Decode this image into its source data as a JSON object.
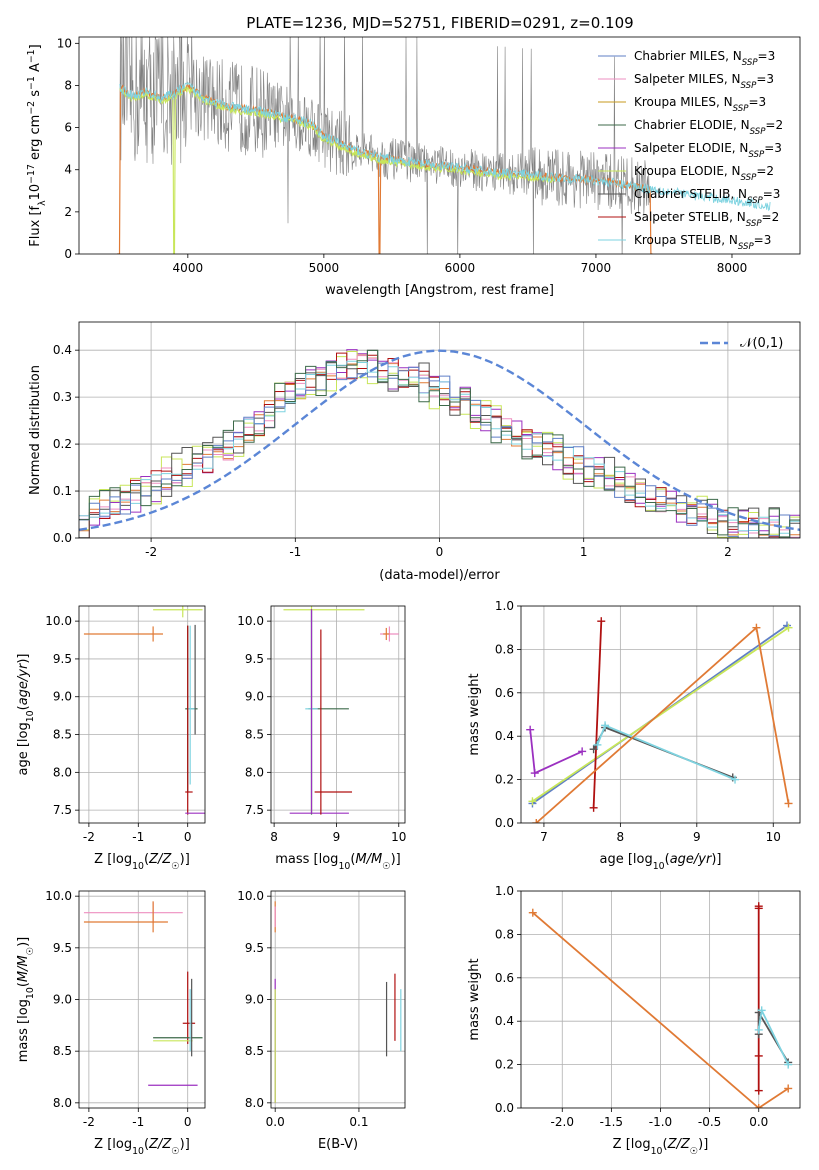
{
  "figure_title": "PLATE=1236, MJD=52751, FIBERID=0291, z=0.109",
  "colors": {
    "Chabrier MILES": "#5f7fc6",
    "Salpeter MILES": "#ee8fc0",
    "Kroupa MILES": "#c79a1e",
    "Chabrier ELODIE": "#3d6a4a",
    "Salpeter ELODIE": "#9b30c0",
    "Kroupa ELODIE": "#c8e65a",
    "Chabrier STELIB": "#555555",
    "Salpeter STELIB": "#b01010",
    "Kroupa STELIB": "#7ed3e0",
    "data": "#808080",
    "gauss": "#5b86d6",
    "orange_model": "#e07a35"
  },
  "chart_data": [
    {
      "id": "spectrum",
      "type": "line",
      "title": "PLATE=1236, MJD=52751, FIBERID=0291, z=0.109",
      "xlabel": "wavelength [Angstrom, rest frame]",
      "ylabel": "Flux [f_λ 10^-17 erg cm^-2 s^-1 A^-1]",
      "xlim": [
        3200,
        8500
      ],
      "ylim": [
        0,
        10.3
      ],
      "xticks": [
        4000,
        5000,
        6000,
        7000,
        8000
      ],
      "yticks": [
        0,
        2,
        4,
        6,
        8,
        10
      ],
      "grid": false,
      "legend_position": "top-right",
      "legend": [
        {
          "name": "Chabrier MILES",
          "nssp": "3"
        },
        {
          "name": "Salpeter MILES",
          "nssp": "3"
        },
        {
          "name": "Kroupa MILES",
          "nssp": "3"
        },
        {
          "name": "Chabrier ELODIE",
          "nssp": "2"
        },
        {
          "name": "Salpeter ELODIE",
          "nssp": "3"
        },
        {
          "name": "Kroupa ELODIE",
          "nssp": "2"
        },
        {
          "name": "Chabrier STELIB",
          "nssp": "3"
        },
        {
          "name": "Salpeter STELIB",
          "nssp": "2"
        },
        {
          "name": "Kroupa STELIB",
          "nssp": "3"
        }
      ],
      "model_continuum": {
        "x": [
          3500,
          3600,
          3700,
          3800,
          3900,
          4000,
          4100,
          4200,
          4300,
          4400,
          4500,
          4600,
          4700,
          4800,
          4900,
          5000,
          5200,
          5400,
          5600,
          5800,
          6000,
          6200,
          6400,
          6600,
          6800,
          7000,
          7200,
          7400,
          7600,
          7800,
          8000,
          8200,
          8280
        ],
        "y": [
          7.9,
          7.5,
          7.7,
          7.4,
          7.6,
          8.0,
          7.5,
          7.2,
          7.0,
          6.9,
          6.8,
          6.7,
          6.5,
          6.4,
          6.2,
          5.6,
          5.0,
          4.6,
          4.4,
          4.2,
          4.1,
          3.9,
          3.8,
          3.7,
          3.6,
          3.5,
          3.3,
          3.1,
          2.9,
          2.7,
          2.55,
          2.35,
          2.25
        ]
      }
    },
    {
      "id": "residuals",
      "type": "line",
      "xlabel": "(data-model)/error",
      "ylabel": "Normed distribution",
      "xlim": [
        -2.5,
        2.5
      ],
      "ylim": [
        0,
        0.46
      ],
      "xticks": [
        -2,
        -1,
        0,
        1,
        2
      ],
      "yticks": [
        0.0,
        0.1,
        0.2,
        0.3,
        0.4
      ],
      "grid": true,
      "legend_position": "top-right",
      "gauss_label": "𝒩(0,1)",
      "bin_width": 0.1,
      "hist_base": [
        0.03,
        0.05,
        0.06,
        0.07,
        0.08,
        0.09,
        0.1,
        0.11,
        0.13,
        0.14,
        0.15,
        0.16,
        0.17,
        0.18,
        0.19,
        0.21,
        0.23,
        0.25,
        0.27,
        0.29,
        0.31,
        0.32,
        0.33,
        0.34,
        0.35,
        0.36,
        0.37,
        0.37,
        0.36,
        0.36,
        0.35,
        0.35,
        0.34,
        0.33,
        0.32,
        0.31,
        0.3,
        0.29,
        0.27,
        0.26,
        0.24,
        0.23,
        0.22,
        0.21,
        0.2,
        0.19,
        0.18,
        0.17,
        0.16,
        0.15,
        0.14,
        0.13,
        0.12,
        0.11,
        0.1,
        0.09,
        0.08,
        0.07,
        0.06,
        0.05,
        0.05,
        0.04,
        0.04,
        0.03,
        0.03,
        0.03,
        0.02,
        0.02,
        0.02,
        0.02
      ]
    },
    {
      "id": "age_vs_Z",
      "type": "scatter",
      "xlabel": "Z [log10(Z/Z☉)]",
      "ylabel": "age [log10(age/yr)]",
      "xlim": [
        -2.2,
        0.35
      ],
      "ylim": [
        7.33,
        10.2
      ],
      "xticks": [
        -2,
        -1,
        0
      ],
      "yticks": [
        7.5,
        8.0,
        8.5,
        9.0,
        9.5,
        10.0
      ],
      "grid": true
    },
    {
      "id": "age_vs_mass",
      "type": "scatter",
      "xlabel": "mass [log10(M/M☉)]",
      "xlim": [
        7.95,
        10.1
      ],
      "ylim": [
        7.33,
        10.2
      ],
      "xticks": [
        8,
        9,
        10
      ],
      "yticks": [
        7.5,
        8.0,
        8.5,
        9.0,
        9.5,
        10.0
      ],
      "grid": true
    },
    {
      "id": "weight_vs_age",
      "type": "line",
      "xlabel": "age [log10(age/yr)]",
      "ylabel": "mass weight",
      "xlim": [
        6.7,
        10.35
      ],
      "ylim": [
        0,
        1.0
      ],
      "xticks": [
        7,
        8,
        9,
        10
      ],
      "yticks": [
        0.0,
        0.2,
        0.4,
        0.6,
        0.8,
        1.0
      ],
      "grid": true,
      "series": [
        {
          "name": "Chabrier MILES",
          "x": [
            6.85,
            10.18
          ],
          "y": [
            0.09,
            0.91
          ]
        },
        {
          "name": "Kroupa ELODIE",
          "x": [
            6.85,
            10.2
          ],
          "y": [
            0.1,
            0.9
          ]
        },
        {
          "name": "Salpeter ELODIE",
          "x": [
            6.82,
            6.88,
            7.5
          ],
          "y": [
            0.43,
            0.23,
            0.33
          ]
        },
        {
          "name": "Salpeter STELIB",
          "x": [
            7.65,
            7.75
          ],
          "y": [
            0.07,
            0.93
          ]
        },
        {
          "name": "Chabrier STELIB",
          "x": [
            7.65,
            7.8,
            9.47
          ],
          "y": [
            0.34,
            0.44,
            0.21
          ]
        },
        {
          "name": "Kroupa STELIB",
          "x": [
            7.7,
            7.8,
            9.5
          ],
          "y": [
            0.36,
            0.45,
            0.2
          ]
        },
        {
          "name": "Kroupa MILES",
          "x": [
            6.9,
            9.78,
            10.2
          ],
          "y": [
            0.0,
            0.9,
            0.09
          ]
        }
      ]
    },
    {
      "id": "mass_vs_Z",
      "type": "scatter",
      "xlabel": "Z [log10(Z/Z☉)]",
      "ylabel": "mass [log10(M/M☉)]",
      "xlim": [
        -2.2,
        0.35
      ],
      "ylim": [
        7.95,
        10.05
      ],
      "xticks": [
        -2,
        -1,
        0
      ],
      "yticks": [
        8.0,
        8.5,
        9.0,
        9.5,
        10.0
      ],
      "grid": true
    },
    {
      "id": "mass_vs_ebv",
      "type": "scatter",
      "xlabel": "E(B-V)",
      "xlim": [
        -0.005,
        0.155
      ],
      "ylim": [
        7.95,
        10.05
      ],
      "xticks": [
        0.0,
        0.1
      ],
      "yticks": [
        8.0,
        8.5,
        9.0,
        9.5,
        10.0
      ],
      "grid": true
    },
    {
      "id": "weight_vs_Z",
      "type": "line",
      "xlabel": "Z [log10(Z/Z☉)]",
      "ylabel": "mass weight",
      "xlim": [
        -2.42,
        0.42
      ],
      "ylim": [
        0,
        1.0
      ],
      "xticks": [
        -2.0,
        -1.5,
        -1.0,
        -0.5,
        0.0
      ],
      "yticks": [
        0.0,
        0.2,
        0.4,
        0.6,
        0.8,
        1.0
      ],
      "grid": true,
      "series": [
        {
          "name": "Kroupa MILES",
          "x": [
            -2.3,
            0.0,
            0.3
          ],
          "y": [
            0.9,
            0.0,
            0.09
          ]
        },
        {
          "name": "Salpeter STELIB",
          "x": [
            0.0,
            0.0,
            0.0,
            0.0
          ],
          "y": [
            0.08,
            0.93,
            0.24,
            0.92
          ]
        },
        {
          "name": "Chabrier STELIB",
          "x": [
            0.0,
            0.0,
            0.3
          ],
          "y": [
            0.34,
            0.44,
            0.21
          ]
        },
        {
          "name": "Kroupa STELIB",
          "x": [
            0.0,
            0.03,
            0.3
          ],
          "y": [
            0.36,
            0.45,
            0.2
          ]
        }
      ]
    }
  ]
}
